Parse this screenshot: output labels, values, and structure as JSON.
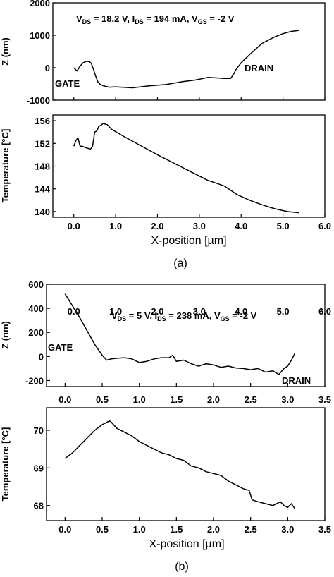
{
  "chart_data": [
    {
      "id": "a-top",
      "type": "line",
      "xlabel": "",
      "ylabel": "Z (nm)",
      "xlim": [
        -0.5,
        6.0
      ],
      "ylim": [
        -1000,
        2000
      ],
      "xticks": [
        "0.0",
        "1.0",
        "2.0",
        "3.0",
        "4.0",
        "5.0",
        "6.0"
      ],
      "yticks": [
        "-1000",
        "0",
        "1000",
        "2000"
      ],
      "annotations": {
        "conditions": "V_DS = 18.2 V, I_DS = 194 mA, V_GS = -2 V",
        "gate": "GATE",
        "drain": "DRAIN"
      },
      "x": [
        0.0,
        0.08,
        0.15,
        0.22,
        0.3,
        0.38,
        0.42,
        0.47,
        0.52,
        0.58,
        0.64,
        0.72,
        0.85,
        1.0,
        1.4,
        1.8,
        2.2,
        2.6,
        2.9,
        3.1,
        3.2,
        3.35,
        3.6,
        3.75,
        3.82,
        3.88,
        4.0,
        4.2,
        4.5,
        4.8,
        5.0,
        5.2,
        5.38
      ],
      "y": [
        0,
        -100,
        50,
        150,
        200,
        180,
        130,
        -50,
        -250,
        -450,
        -520,
        -560,
        -600,
        -590,
        -620,
        -560,
        -520,
        -430,
        -380,
        -330,
        -300,
        -310,
        -330,
        -330,
        -200,
        -50,
        150,
        400,
        750,
        950,
        1050,
        1120,
        1150
      ]
    },
    {
      "id": "a-bottom",
      "type": "line",
      "xlabel": "X-position [µm]",
      "ylabel": "Temperature [°C]",
      "xlim": [
        -0.5,
        6.0
      ],
      "ylim": [
        139,
        157
      ],
      "xticks": [
        "0.0",
        "1.0",
        "2.0",
        "3.0",
        "4.0",
        "5.0",
        "6.0"
      ],
      "yticks": [
        "140",
        "144",
        "148",
        "152",
        "156"
      ],
      "x": [
        0.0,
        0.05,
        0.1,
        0.15,
        0.2,
        0.3,
        0.4,
        0.45,
        0.5,
        0.55,
        0.6,
        0.65,
        0.7,
        0.8,
        0.9,
        1.2,
        1.6,
        2.0,
        2.4,
        2.8,
        3.2,
        3.6,
        3.9,
        4.2,
        4.5,
        4.8,
        5.1,
        5.38
      ],
      "y": [
        151.5,
        152.5,
        153.0,
        151.5,
        151.5,
        151.2,
        151.0,
        151.5,
        154.0,
        154.2,
        155.0,
        155.2,
        155.5,
        155.3,
        154.5,
        153.2,
        151.6,
        150.0,
        148.5,
        147.0,
        145.5,
        144.5,
        143.0,
        142.0,
        141.2,
        140.5,
        140.0,
        139.8
      ]
    },
    {
      "id": "b-top",
      "type": "line",
      "xlabel": "",
      "ylabel": "Z (nm)",
      "xlim": [
        -0.25,
        3.5
      ],
      "ylim": [
        -250,
        600
      ],
      "xticks": [
        "0.0",
        "0.5",
        "1.0",
        "1.5",
        "2.0",
        "2.5",
        "3.0",
        "3.5"
      ],
      "yticks": [
        "-200",
        "0",
        "200",
        "400",
        "600"
      ],
      "annotations": {
        "conditions": "V_DS = 5 V, I_DS = 238 mA, V_GS = -2 V",
        "gate": "GATE",
        "drain": "DRAIN"
      },
      "x": [
        0.0,
        0.1,
        0.2,
        0.3,
        0.4,
        0.5,
        0.56,
        0.62,
        0.7,
        0.8,
        0.9,
        1.0,
        1.1,
        1.2,
        1.3,
        1.4,
        1.45,
        1.5,
        1.6,
        1.7,
        1.8,
        1.9,
        2.0,
        2.1,
        2.2,
        2.3,
        2.4,
        2.5,
        2.6,
        2.7,
        2.8,
        2.88,
        2.95,
        3.0,
        3.05,
        3.1
      ],
      "y": [
        520,
        420,
        320,
        210,
        100,
        10,
        -30,
        -20,
        -15,
        -10,
        -20,
        -50,
        -40,
        -20,
        -10,
        -10,
        10,
        -40,
        -30,
        -60,
        -80,
        -60,
        -70,
        -90,
        -80,
        -95,
        -100,
        -110,
        -100,
        -130,
        -120,
        -150,
        -100,
        -80,
        -30,
        30
      ]
    },
    {
      "id": "b-bottom",
      "type": "line",
      "xlabel": "X-position [µm]",
      "ylabel": "Temperature [°C]",
      "xlim": [
        -0.25,
        3.5
      ],
      "ylim": [
        67.6,
        70.6
      ],
      "xticks": [
        "0.0",
        "0.5",
        "1.0",
        "1.5",
        "2.0",
        "2.5",
        "3.0",
        "3.5"
      ],
      "yticks": [
        "68",
        "69",
        "70"
      ],
      "x": [
        0.0,
        0.1,
        0.2,
        0.3,
        0.4,
        0.5,
        0.55,
        0.6,
        0.62,
        0.7,
        0.8,
        0.9,
        1.0,
        1.1,
        1.2,
        1.3,
        1.4,
        1.5,
        1.6,
        1.7,
        1.8,
        1.9,
        2.0,
        2.1,
        2.2,
        2.3,
        2.4,
        2.48,
        2.52,
        2.6,
        2.7,
        2.8,
        2.9,
        2.95,
        3.0,
        3.05,
        3.1
      ],
      "y": [
        69.25,
        69.4,
        69.6,
        69.8,
        70.0,
        70.15,
        70.2,
        70.25,
        70.22,
        70.05,
        69.95,
        69.85,
        69.7,
        69.6,
        69.5,
        69.4,
        69.35,
        69.25,
        69.2,
        69.05,
        69.0,
        68.9,
        68.85,
        68.8,
        68.65,
        68.55,
        68.45,
        68.4,
        68.15,
        68.1,
        68.05,
        68.0,
        68.1,
        68.0,
        67.95,
        68.05,
        67.9
      ]
    }
  ],
  "captions": [
    "(a)",
    "(b)"
  ]
}
